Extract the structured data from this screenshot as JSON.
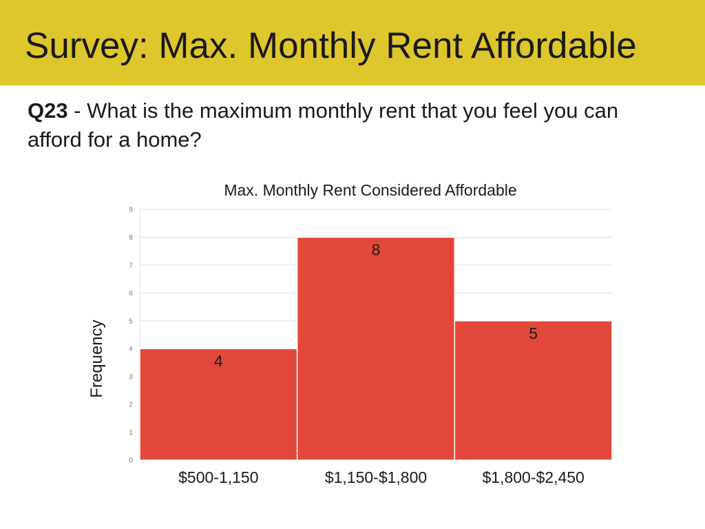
{
  "slide": {
    "title": "Survey: Max. Monthly Rent Affordable",
    "question_number": "Q23",
    "question_separator": " - ",
    "question_text": "What is the maximum monthly rent that you feel you can afford for a home?"
  },
  "colors": {
    "title_bar": "#dec62d",
    "bar": "#e34739",
    "grid": "#dddddd"
  },
  "chart_data": {
    "type": "bar",
    "title": "Max. Monthly Rent Considered Affordable",
    "xlabel": "",
    "ylabel": "Frequency",
    "categories": [
      "$500-1,150",
      "$1,150-$1,800",
      "$1,800-$2,450"
    ],
    "values": [
      4,
      8,
      5
    ],
    "data_labels": [
      "4",
      "8",
      "5"
    ],
    "ylim": [
      0,
      9
    ],
    "yticks": [
      0,
      1,
      2,
      3,
      4,
      5,
      6,
      7,
      8,
      9
    ],
    "grid": true,
    "legend": "none"
  }
}
